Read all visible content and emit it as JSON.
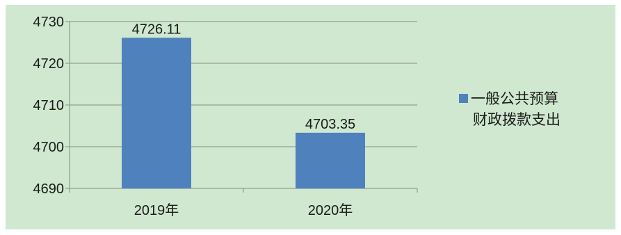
{
  "chart_data": {
    "type": "bar",
    "categories": [
      "2019年",
      "2020年"
    ],
    "series": [
      {
        "name": "一般公共预算财政拨款支出",
        "values": [
          4726.11,
          4703.35
        ]
      }
    ],
    "data_labels": [
      "4726.11",
      "4703.35"
    ],
    "ylim": [
      4690,
      4730
    ],
    "yticks": [
      4690,
      4700,
      4710,
      4720,
      4730
    ],
    "ytick_labels": [
      "4690",
      "4700",
      "4710",
      "4720",
      "4730"
    ],
    "title": "",
    "xlabel": "",
    "ylabel": "",
    "grid": true,
    "legend_position": "right",
    "colors": {
      "bar": "#4f81bd",
      "background": "#cfe8cf",
      "gridline": "#8a8a8a"
    }
  },
  "legend": {
    "line1": "一般公共预算",
    "line2": "财政拨款支出"
  }
}
